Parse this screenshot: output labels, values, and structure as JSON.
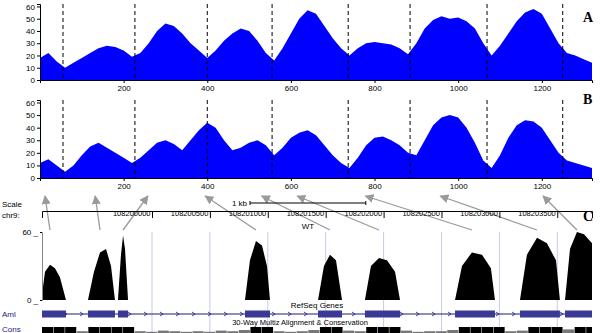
{
  "chart_data": [
    {
      "type": "area",
      "title": "A",
      "x": [
        0,
        20,
        40,
        60,
        80,
        100,
        120,
        140,
        160,
        180,
        200,
        220,
        240,
        260,
        280,
        300,
        320,
        340,
        360,
        380,
        400,
        420,
        440,
        460,
        480,
        500,
        520,
        540,
        560,
        580,
        600,
        620,
        640,
        660,
        680,
        700,
        720,
        740,
        760,
        780,
        800,
        820,
        840,
        860,
        880,
        900,
        920,
        940,
        960,
        980,
        1000,
        1020,
        1040,
        1060,
        1080,
        1100,
        1120,
        1140,
        1160,
        1180,
        1200,
        1220,
        1240,
        1260,
        1280,
        1300,
        1320
      ],
      "values": [
        18,
        22,
        15,
        10,
        14,
        18,
        22,
        26,
        28,
        27,
        24,
        19,
        22,
        30,
        40,
        46,
        44,
        38,
        30,
        24,
        18,
        24,
        32,
        38,
        42,
        40,
        32,
        22,
        16,
        26,
        38,
        50,
        57,
        54,
        44,
        34,
        26,
        20,
        26,
        30,
        31,
        30,
        29,
        26,
        21,
        30,
        42,
        49,
        52,
        50,
        51,
        48,
        42,
        30,
        20,
        28,
        38,
        48,
        55,
        58,
        54,
        42,
        30,
        22,
        20,
        17,
        14
      ],
      "color": "#0000ff",
      "xlim": [
        0,
        1320
      ],
      "ylim": [
        0,
        62
      ],
      "xticks": [
        200,
        400,
        600,
        800,
        1000,
        1200
      ],
      "yticks": [
        0,
        10,
        20,
        30,
        40,
        50,
        60
      ],
      "boundaries": [
        55,
        227,
        400,
        555,
        737,
        885,
        1069,
        1250
      ]
    },
    {
      "type": "area",
      "title": "B",
      "x": [
        0,
        20,
        40,
        60,
        80,
        100,
        120,
        140,
        160,
        180,
        200,
        220,
        240,
        260,
        280,
        300,
        320,
        340,
        360,
        380,
        400,
        420,
        440,
        460,
        480,
        500,
        520,
        540,
        560,
        580,
        600,
        620,
        640,
        660,
        680,
        700,
        720,
        740,
        760,
        780,
        800,
        820,
        840,
        860,
        880,
        900,
        920,
        940,
        960,
        980,
        1000,
        1020,
        1040,
        1060,
        1080,
        1100,
        1120,
        1140,
        1160,
        1180,
        1200,
        1220,
        1240,
        1260,
        1280,
        1300,
        1320
      ],
      "values": [
        12,
        15,
        10,
        5,
        10,
        18,
        25,
        28,
        24,
        20,
        16,
        12,
        16,
        22,
        28,
        30,
        27,
        22,
        30,
        38,
        44,
        40,
        30,
        22,
        24,
        28,
        30,
        26,
        18,
        24,
        32,
        36,
        38,
        34,
        26,
        18,
        12,
        8,
        16,
        26,
        32,
        33,
        30,
        26,
        20,
        18,
        30,
        42,
        48,
        50,
        48,
        40,
        28,
        14,
        8,
        18,
        32,
        42,
        46,
        45,
        40,
        30,
        20,
        14,
        12,
        10,
        8
      ],
      "color": "#0000ff",
      "xlim": [
        0,
        1320
      ],
      "ylim": [
        0,
        62
      ],
      "xticks": [
        200,
        400,
        600,
        800,
        1000,
        1200
      ],
      "yticks": [
        0,
        10,
        20,
        30,
        40,
        50,
        60
      ],
      "boundaries": [
        55,
        227,
        400,
        555,
        737,
        885,
        1069,
        1250
      ]
    },
    {
      "type": "area",
      "title": "C",
      "x": [
        108199050,
        108199076,
        108199119,
        108199162,
        108199205,
        108199257,
        108199447,
        108199499,
        108199551,
        108199603,
        108199646,
        108199680,
        108199706,
        108199732,
        108199750,
        108199767,
        108199793,
        108200803,
        108200846,
        108200898,
        108200950,
        108200993,
        108201019,
        108201434,
        108201485,
        108201537,
        108201589,
        108201641,
        108201839,
        108201891,
        108201960,
        108202029,
        108202099,
        108202142,
        108202617,
        108202677,
        108202763,
        108202850,
        108202927,
        108202962,
        108203178,
        108203238,
        108203325,
        108203411,
        108203489,
        108203523,
        108203567,
        108203610,
        108203670,
        108203731,
        108203800
      ],
      "values": [
        5,
        25,
        31,
        28,
        20,
        0,
        0,
        25,
        42,
        45,
        30,
        0,
        0,
        40,
        57,
        45,
        0,
        0,
        35,
        52,
        48,
        30,
        0,
        0,
        30,
        40,
        35,
        0,
        0,
        30,
        37,
        35,
        25,
        0,
        0,
        30,
        42,
        40,
        28,
        0,
        0,
        40,
        55,
        50,
        35,
        0,
        0,
        45,
        60,
        58,
        50
      ],
      "color": "#000000",
      "xlim": [
        108199050,
        108203800
      ],
      "ylim": [
        0,
        60
      ],
      "xticks": [
        108200000,
        108200500,
        108201000,
        108201500,
        108202000,
        108202500,
        108203000,
        108203500
      ],
      "yticks": [
        {
          "value": 0,
          "label": "0 _"
        },
        {
          "value": 60,
          "label": "60 _"
        }
      ],
      "annotations": [
        "Scale",
        "chr9:",
        "WT"
      ],
      "scale_bar": {
        "label": "1 kb",
        "value": 1000
      },
      "gene": {
        "name": "Aml",
        "track": "RefSeq Genes",
        "exons": [
          [
            108199050,
            108199257
          ],
          [
            108199447,
            108199680
          ],
          [
            108199706,
            108199793
          ],
          [
            108200803,
            108201019
          ],
          [
            108201434,
            108201641
          ],
          [
            108201839,
            108202142
          ],
          [
            108202617,
            108202962
          ],
          [
            108203178,
            108203523
          ],
          [
            108203567,
            108203800
          ]
        ]
      },
      "conservation": {
        "label": "Cons",
        "track": "30-Way Multiz Alignment & Conservation",
        "x": [
          108199050,
          108199150,
          108199250,
          108199350,
          108199450,
          108199550,
          108199650,
          108199750,
          108199850,
          108199950,
          108200050,
          108200150,
          108200250,
          108200350,
          108200450,
          108200550,
          108200650,
          108200750,
          108200850,
          108200950,
          108201050,
          108201150,
          108201250,
          108201350,
          108201450,
          108201550,
          108201650,
          108201750,
          108201850,
          108201950,
          108202050,
          108202150,
          108202250,
          108202350,
          108202450,
          108202550,
          108202650,
          108202750,
          108202850,
          108202950,
          108203050,
          108203150,
          108203250,
          108203350,
          108203450,
          108203550,
          108203650,
          108203750
        ],
        "values": [
          1,
          1,
          1,
          0.3,
          1,
          1,
          1,
          1,
          0.3,
          0.2,
          0.4,
          0.3,
          0.2,
          0.3,
          0.2,
          0.4,
          0.3,
          0.5,
          1,
          1,
          0.3,
          0.2,
          0.3,
          0.5,
          1,
          1,
          0.4,
          0.3,
          1,
          1,
          1,
          0.4,
          0.2,
          0.3,
          0.3,
          0.5,
          1,
          1,
          1,
          1,
          0.3,
          0.4,
          1,
          1,
          1,
          0.6,
          1,
          1
        ]
      },
      "links": [
        {
          "x": 12,
          "pos": 108199119
        },
        {
          "x": 132,
          "pos": 108199551
        },
        {
          "x": 258,
          "pos": 108199750
        },
        {
          "x": 395,
          "pos": 108200898
        },
        {
          "x": 530,
          "pos": 108201537
        },
        {
          "x": 615,
          "pos": 108201960
        },
        {
          "x": 778,
          "pos": 108202763
        },
        {
          "x": 957,
          "pos": 108203325
        },
        {
          "x": 1203,
          "pos": 108203670
        }
      ]
    }
  ]
}
